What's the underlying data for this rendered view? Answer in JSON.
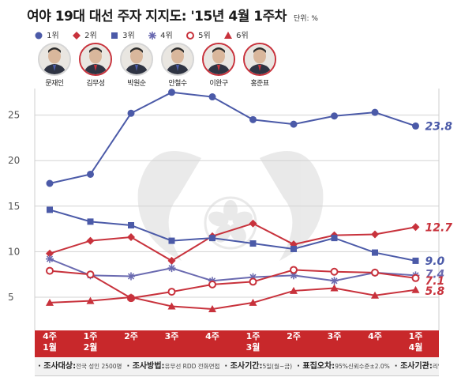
{
  "header": {
    "title": "여야 19대 대선 주자 지지도: '15년 4월 1주차",
    "unit": "단위: %"
  },
  "legend": [
    {
      "label": "1위",
      "marker": "circle",
      "color": "#4b5aa8"
    },
    {
      "label": "2위",
      "marker": "diamond",
      "color": "#c8323c"
    },
    {
      "label": "3위",
      "marker": "square",
      "color": "#4b5aa8"
    },
    {
      "label": "4위",
      "marker": "asterisk",
      "color": "#6a6ab0"
    },
    {
      "label": "5위",
      "marker": "open-circle",
      "color": "#c8323c"
    },
    {
      "label": "6위",
      "marker": "triangle",
      "color": "#c8323c"
    }
  ],
  "candidates": [
    {
      "name": "문재인",
      "avatar_icon": "portrait-icon",
      "accent": "#4b5aa8"
    },
    {
      "name": "김무성",
      "avatar_icon": "portrait-icon",
      "accent": "#c8323c"
    },
    {
      "name": "박원순",
      "avatar_icon": "portrait-icon",
      "accent": "#4b5aa8"
    },
    {
      "name": "안철수",
      "avatar_icon": "portrait-icon",
      "accent": "#4b5aa8"
    },
    {
      "name": "이완구",
      "avatar_icon": "portrait-icon",
      "accent": "#c8323c"
    },
    {
      "name": "홍준표",
      "avatar_icon": "portrait-icon",
      "accent": "#c8323c"
    }
  ],
  "footer": {
    "items": [
      {
        "label": "조사대상:",
        "value": "전국 성인 2500명"
      },
      {
        "label": "조사방법:",
        "value": "유무선 RDD 전화면접"
      },
      {
        "label": "조사기간:",
        "value": "5일(월~금)"
      },
      {
        "label": "표집오차:",
        "value": "95%신뢰수준±2.0%"
      },
      {
        "label": "조사기관:",
        "value": "리얼미터"
      }
    ]
  },
  "chart_data": {
    "type": "line",
    "categories": [
      "4주|1월",
      "1주|2월",
      "2주",
      "3주",
      "4주",
      "1주|3월",
      "2주",
      "3주",
      "4주",
      "1주|4월"
    ],
    "yticks": [
      5,
      10,
      15,
      20,
      25
    ],
    "ylim": [
      2.5,
      28
    ],
    "grid": true,
    "series": [
      {
        "name": "1위",
        "marker": "circle",
        "color": "#4b5aa8",
        "values": [
          17.5,
          18.5,
          25.2,
          27.5,
          27.0,
          24.5,
          24.0,
          24.9,
          25.3,
          23.8
        ],
        "end_label": "23.8"
      },
      {
        "name": "2위",
        "marker": "diamond",
        "color": "#c8323c",
        "values": [
          9.8,
          11.2,
          11.6,
          9.0,
          11.7,
          13.1,
          10.8,
          11.8,
          11.9,
          12.7
        ],
        "end_label": "12.7"
      },
      {
        "name": "3위",
        "marker": "square",
        "color": "#4b5aa8",
        "values": [
          14.6,
          13.3,
          12.9,
          11.2,
          11.5,
          10.9,
          10.3,
          11.5,
          9.9,
          9.0
        ],
        "end_label": "9.0"
      },
      {
        "name": "4위",
        "marker": "asterisk",
        "color": "#6a6ab0",
        "values": [
          9.2,
          7.4,
          7.3,
          8.2,
          6.8,
          7.2,
          7.4,
          6.8,
          7.7,
          7.4
        ],
        "end_label": "7.4"
      },
      {
        "name": "5위",
        "marker": "open-circle",
        "color": "#c8323c",
        "values": [
          7.9,
          7.5,
          4.9,
          5.6,
          6.4,
          6.7,
          8.0,
          7.8,
          7.7,
          7.1
        ],
        "end_label": "7.1"
      },
      {
        "name": "6위",
        "marker": "triangle",
        "color": "#c8323c",
        "values": [
          4.4,
          4.6,
          5.0,
          4.0,
          3.7,
          4.4,
          5.7,
          6.0,
          5.2,
          5.8
        ],
        "end_label": "5.8"
      }
    ]
  }
}
